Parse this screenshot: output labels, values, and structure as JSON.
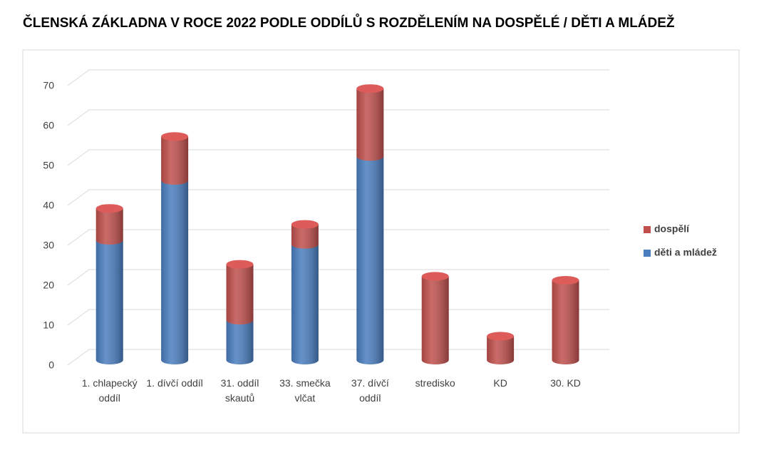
{
  "chart_data": {
    "type": "bar3d-stacked",
    "title": "ČLENSKÁ ZÁKLADNA V ROCE 2022 PODLE ODDÍLŮ S ROZDĚLENÍM NA DOSPĚLÉ / DĚTI A MLÁDEŽ",
    "categories": [
      "1. chlapecký oddíl",
      "1. dívčí oddíl",
      "31. oddíl skautů",
      "33. smečka vlčat",
      "37. dívčí oddíl",
      "stredisko",
      "KD",
      "30. KD"
    ],
    "series": [
      {
        "name": "děti a mládež",
        "color": "#4a7ebf",
        "values": [
          30,
          45,
          10,
          29,
          51,
          0,
          0,
          0
        ]
      },
      {
        "name": "dospělí",
        "color": "#c0504d",
        "values": [
          8,
          11,
          14,
          5,
          17,
          21,
          6,
          20
        ]
      }
    ],
    "ylim": [
      0,
      70
    ],
    "yticks": [
      0,
      10,
      20,
      30,
      40,
      50,
      60,
      70
    ],
    "grid": true,
    "legend": "right"
  }
}
